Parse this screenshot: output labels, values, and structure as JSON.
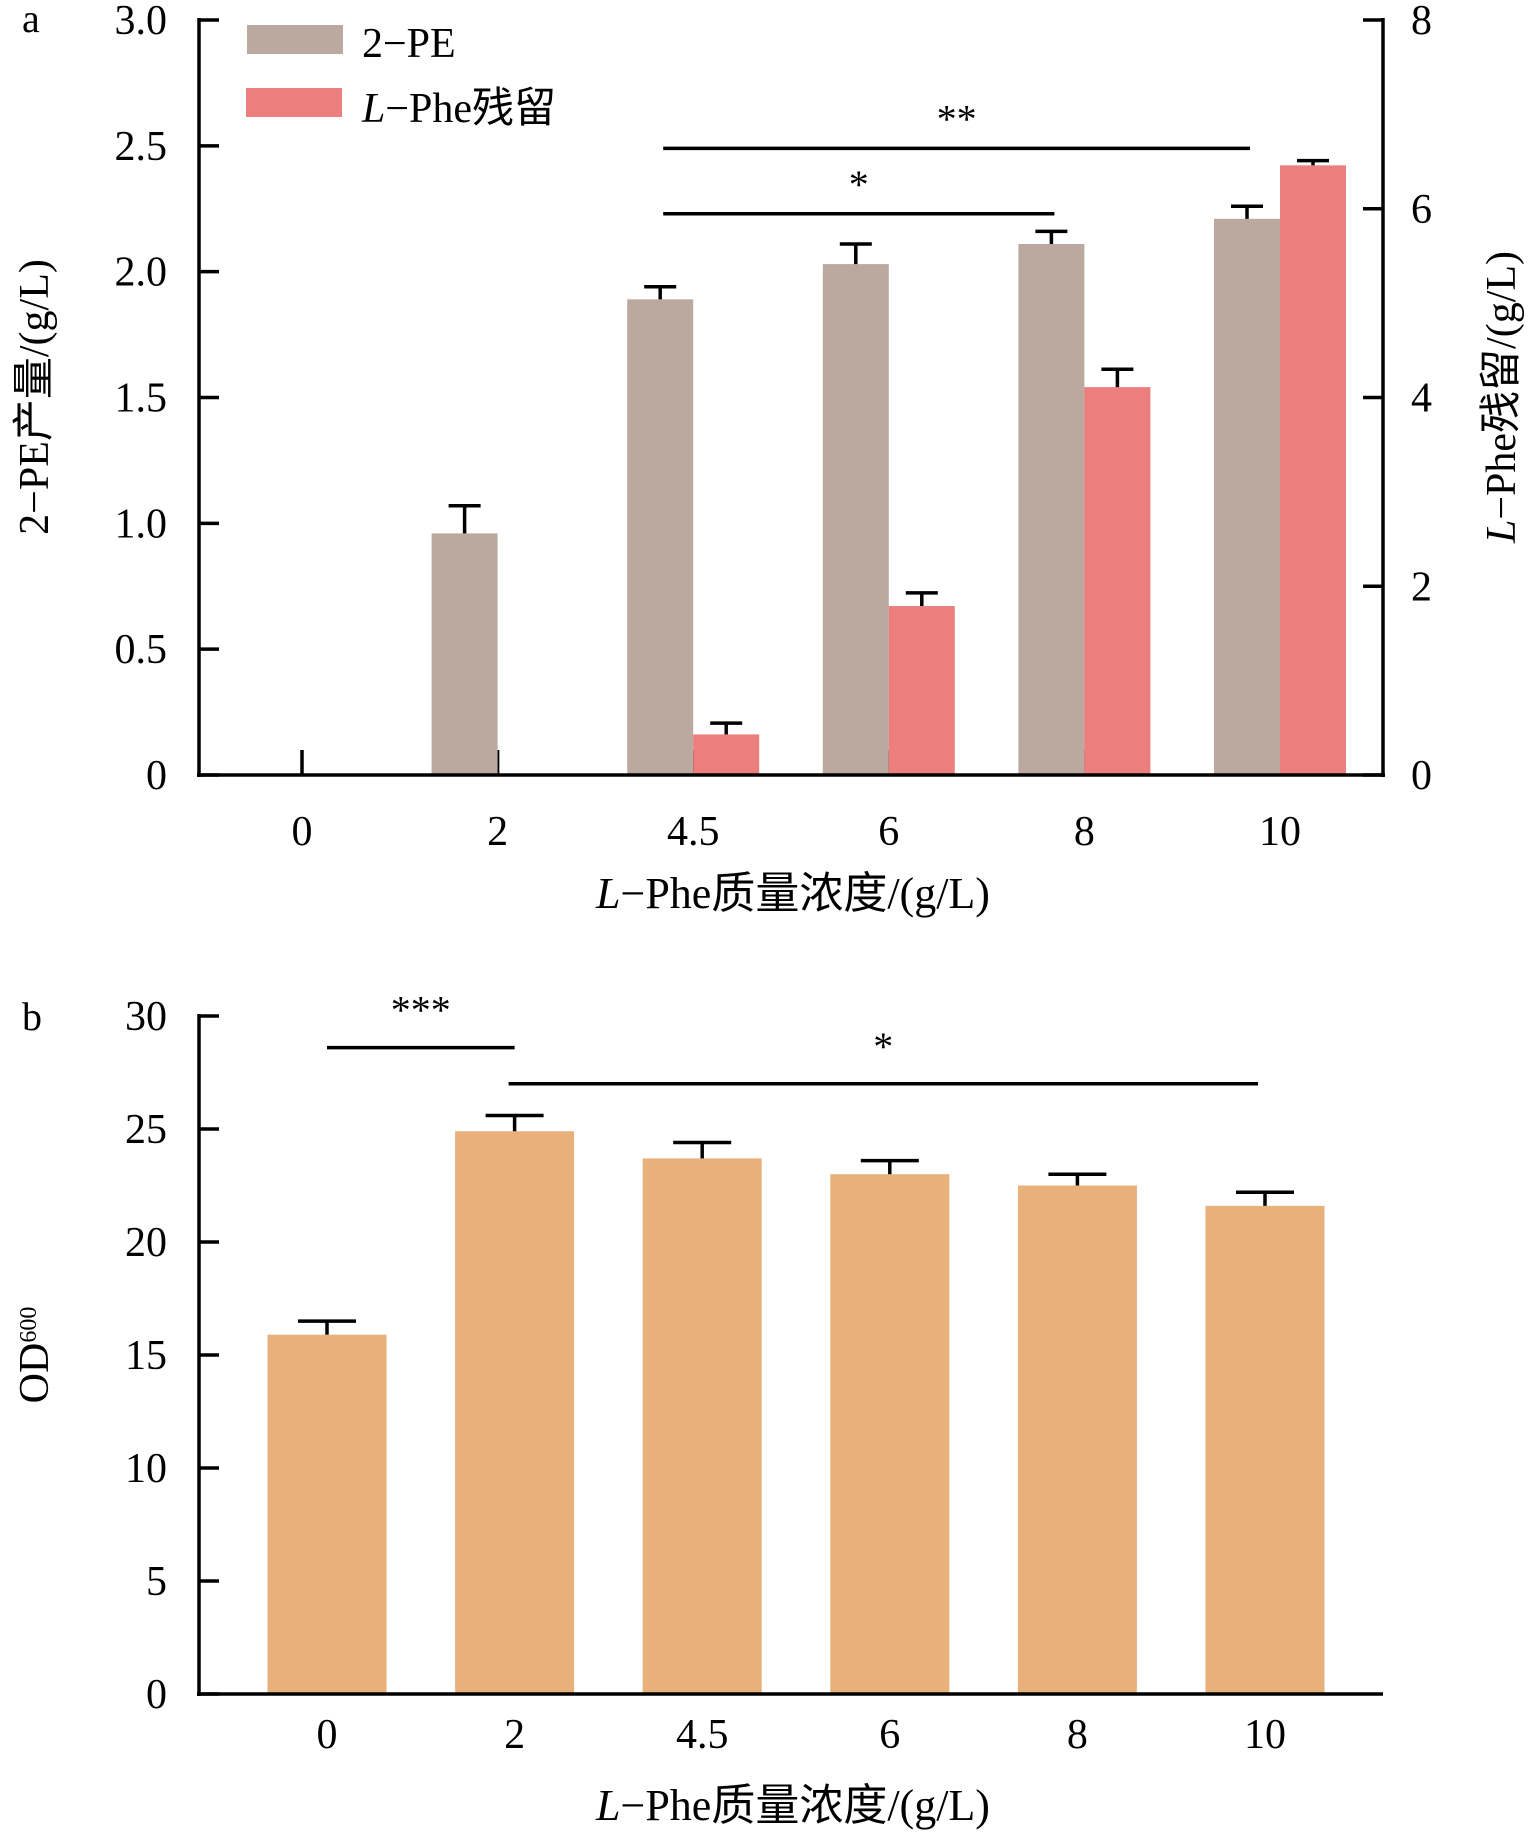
{
  "colors": {
    "pe": "#BBA99F",
    "phe": "#EC7E7E",
    "od": "#E8B07B",
    "axis": "#000000"
  },
  "chart_data": [
    {
      "panel_label": "a",
      "type": "bar",
      "categories": [
        "0",
        "2",
        "4.5",
        "6",
        "8",
        "10"
      ],
      "xlabel": {
        "italic": "L",
        "rest": "−Phe质量浓度/(g/L)"
      },
      "ylabel": "2−PE产量/(g/L)",
      "y2label": {
        "italic": "L",
        "rest": "−Phe残留/(g/L)"
      },
      "ylim": [
        0,
        3.0
      ],
      "yticks": [
        "0",
        "0.5",
        "1.0",
        "1.5",
        "2.0",
        "2.5",
        "3.0"
      ],
      "ytick_values": [
        0,
        0.5,
        1.0,
        1.5,
        2.0,
        2.5,
        3.0
      ],
      "y2lim": [
        0,
        8
      ],
      "y2ticks": [
        "0",
        "2",
        "4",
        "6",
        "8"
      ],
      "y2tick_values": [
        0,
        2,
        4,
        6,
        8
      ],
      "legend": {
        "position": "top-left",
        "entries": [
          {
            "label": "2−PE",
            "italic": ""
          },
          {
            "label": "−Phe残留",
            "italic": "L"
          }
        ]
      },
      "series": [
        {
          "name": "2-PE",
          "axis": "left",
          "values": [
            0,
            0.96,
            1.89,
            2.03,
            2.11,
            2.21
          ],
          "errors": [
            0,
            0.11,
            0.05,
            0.08,
            0.05,
            0.05
          ]
        },
        {
          "name": "L-Phe残留",
          "axis": "right",
          "values": [
            0,
            0,
            0.43,
            1.79,
            4.11,
            6.46
          ],
          "errors": [
            0,
            0,
            0.12,
            0.14,
            0.19,
            0.05
          ]
        }
      ],
      "significance": [
        {
          "label": "*",
          "from": "4.5",
          "to": "8",
          "level": 2.23
        },
        {
          "label": "**",
          "from": "4.5",
          "to": "10",
          "level": 2.49
        }
      ]
    },
    {
      "panel_label": "b",
      "type": "bar",
      "categories": [
        "0",
        "2",
        "4.5",
        "6",
        "8",
        "10"
      ],
      "xlabel": {
        "italic": "L",
        "rest": "−Phe质量浓度/(g/L)"
      },
      "ylabel": "OD",
      "ylabel_sub": "600",
      "ylim": [
        0,
        30
      ],
      "yticks": [
        "0",
        "5",
        "10",
        "15",
        "20",
        "25",
        "30"
      ],
      "ytick_values": [
        0,
        5,
        10,
        15,
        20,
        25,
        30
      ],
      "series": [
        {
          "name": "OD600",
          "values": [
            15.9,
            24.9,
            23.7,
            23.0,
            22.5,
            21.6
          ],
          "errors": [
            0.6,
            0.7,
            0.7,
            0.6,
            0.5,
            0.6
          ]
        }
      ],
      "significance": [
        {
          "label": "***",
          "from": "0",
          "to": "2",
          "level": 28.6
        },
        {
          "label": "*",
          "from": "2",
          "to": "10",
          "level": 27.0
        }
      ]
    }
  ]
}
